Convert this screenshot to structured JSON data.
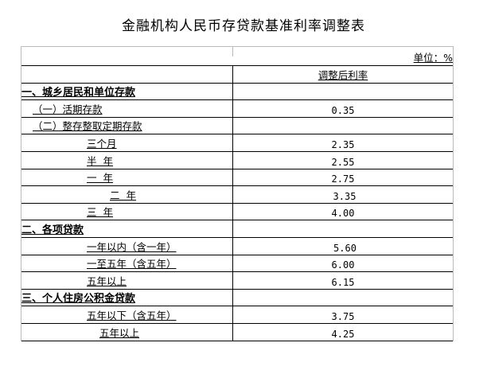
{
  "title": "金融机构人民币存贷款基准利率调整表",
  "unit_label": "单位：%",
  "column_header": "调整后利率",
  "rows": [
    {
      "label": "一、城乡居民和单位存款",
      "value": "",
      "bold": true,
      "indent": 0
    },
    {
      "label": "（一）活期存款",
      "value": "0.35",
      "indent": 14
    },
    {
      "label": "（二）整存整取定期存款",
      "value": "",
      "indent": 14
    },
    {
      "label": "三个月",
      "value": "2.35",
      "indent": 82
    },
    {
      "label": "半  年",
      "value": "2.55",
      "indent": 82
    },
    {
      "label": "一  年",
      "value": "2.75",
      "indent": 82
    },
    {
      "label": "二  年",
      "value": "3.35",
      "indent": 111
    },
    {
      "label": "三  年",
      "value": "4.00",
      "indent": 82
    },
    {
      "label": "二、各项贷款",
      "value": "",
      "bold": true,
      "indent": 0
    },
    {
      "label": "一年以内（含一年）",
      "value": "5.60",
      "indent": 82
    },
    {
      "label": "一至五年（含五年）",
      "value": "6.00",
      "indent": 82
    },
    {
      "label": "五年以上",
      "value": "6.15",
      "indent": 82
    },
    {
      "label": "三、个人住房公积金贷款",
      "value": "",
      "bold": true,
      "indent": 0
    },
    {
      "label": "五年以下（含五年）",
      "value": "3.75",
      "indent": 82
    },
    {
      "label": "五年以上",
      "value": "4.25",
      "indent": 98
    }
  ]
}
